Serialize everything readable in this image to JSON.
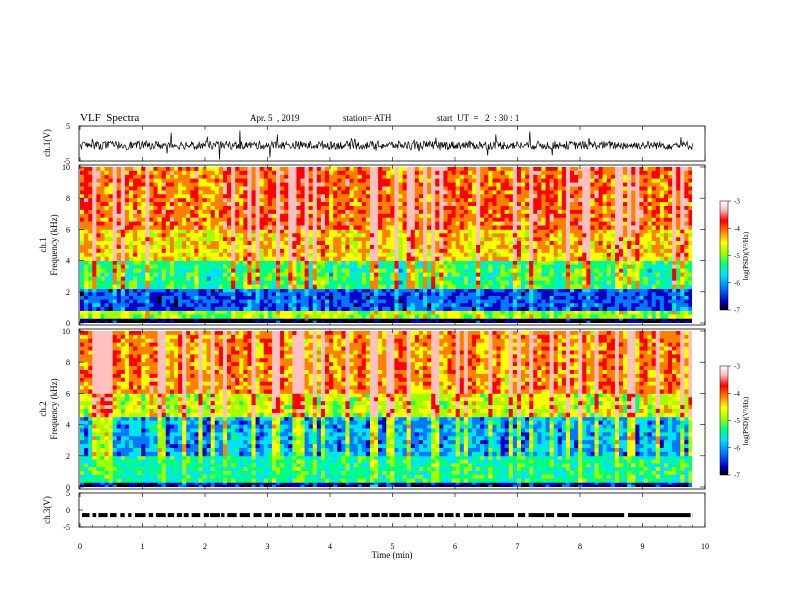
{
  "header": {
    "title": "VLF  Spectra",
    "date": "Apr. 5  , 2019",
    "station": "station= ATH",
    "start": "start  UT  =   2  : 30 : 1"
  },
  "chart_data": [
    {
      "type": "line",
      "panel": "ch1-waveform",
      "ylabel": "ch.1(V)",
      "ylim": [
        -5,
        5
      ],
      "yticks": [
        "5",
        "-5"
      ],
      "xlim": [
        0,
        10
      ],
      "series_color": "#000000"
    },
    {
      "type": "heatmap",
      "panel": "ch1-spectrogram",
      "ylabel": "ch.1\nFrequency (kHz)",
      "ylabel_line1": "ch.1",
      "ylabel_line2": "Frequency  (kHz)",
      "ylim": [
        0,
        10
      ],
      "yticks": [
        "0",
        "2",
        "4",
        "6",
        "8",
        "10"
      ],
      "xlim": [
        0,
        9.8
      ],
      "colorbar": {
        "label": "log(PSD)(V²/Hz)",
        "range": [
          -7,
          -3
        ],
        "ticks": [
          "-3",
          "-4",
          "-5",
          "-6",
          "-7"
        ]
      },
      "bands_khz": [
        {
          "from": 0,
          "to": 0.3,
          "level": -6.8
        },
        {
          "from": 0.3,
          "to": 0.8,
          "level": -4.8
        },
        {
          "from": 0.8,
          "to": 2.2,
          "level": -6.2
        },
        {
          "from": 2.2,
          "to": 4.0,
          "level": -5.2
        },
        {
          "from": 4.0,
          "to": 6.0,
          "level": -4.3
        },
        {
          "from": 6.0,
          "to": 10.0,
          "level": -3.9
        }
      ]
    },
    {
      "type": "heatmap",
      "panel": "ch2-spectrogram",
      "ylabel_line1": "ch.2",
      "ylabel_line2": "Frequency  (kHz)",
      "ylim": [
        0,
        10
      ],
      "yticks": [
        "0",
        "2",
        "4",
        "6",
        "8",
        "10"
      ],
      "xlim": [
        0,
        9.8
      ],
      "colorbar": {
        "label": "log(PSD)(V²/Hz)",
        "range": [
          -7,
          -3
        ],
        "ticks": [
          "-3",
          "-4",
          "-5",
          "-6",
          "-7"
        ]
      },
      "bands_khz": [
        {
          "from": 0,
          "to": 0.3,
          "level": -6.5
        },
        {
          "from": 0.3,
          "to": 2.0,
          "level": -5.3
        },
        {
          "from": 2.0,
          "to": 4.5,
          "level": -5.8
        },
        {
          "from": 4.5,
          "to": 6.0,
          "level": -4.6
        },
        {
          "from": 6.0,
          "to": 10.0,
          "level": -4.0
        }
      ]
    },
    {
      "type": "line",
      "panel": "ch3-waveform",
      "ylabel": "ch.3(V)",
      "ylim": [
        -5,
        5
      ],
      "yticks": [
        "5",
        "0",
        "-5"
      ],
      "xlim": [
        0,
        10
      ],
      "level": -1.5
    }
  ],
  "xaxis": {
    "label": "Time  (min)",
    "ticks": [
      "0",
      "1",
      "2",
      "3",
      "4",
      "5",
      "6",
      "7",
      "8",
      "9",
      "10"
    ],
    "range": [
      0,
      10
    ]
  },
  "colors": {
    "colormap": [
      "#000000",
      "#0000c8",
      "#0078ff",
      "#00e0ff",
      "#00ff80",
      "#a0ff00",
      "#ffff00",
      "#ff8000",
      "#ff0000",
      "#ffc0c0",
      "#ffffff"
    ]
  }
}
